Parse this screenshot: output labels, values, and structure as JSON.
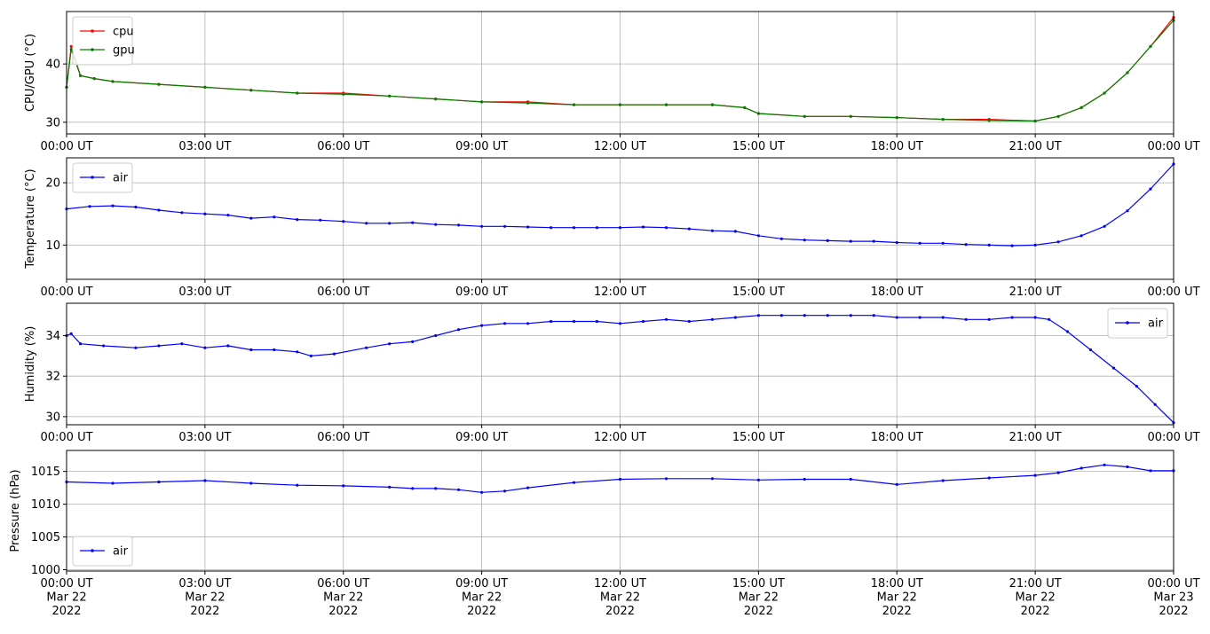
{
  "chart_data": [
    {
      "type": "line",
      "ylabel": "CPU/GPU (°C)",
      "ylim": [
        28,
        49
      ],
      "yticks": [
        30,
        40
      ],
      "xlim": [
        0,
        24
      ],
      "xticklabels": [
        "00:00 UT",
        "03:00 UT",
        "06:00 UT",
        "09:00 UT",
        "12:00 UT",
        "15:00 UT",
        "18:00 UT",
        "21:00 UT",
        "00:00 UT"
      ],
      "grid": true,
      "legend_position": "upper-left",
      "series": [
        {
          "name": "cpu",
          "color": "#ff0000",
          "x": [
            0,
            0.1,
            0.3,
            0.6,
            1,
            2,
            3,
            4,
            5,
            6,
            7,
            8,
            9,
            10,
            11,
            12,
            13,
            14,
            14.7,
            15,
            16,
            17,
            18,
            19,
            20,
            21,
            21.5,
            22,
            22.5,
            23,
            23.5,
            24
          ],
          "y": [
            36,
            43,
            38,
            37.5,
            37,
            36.5,
            36,
            35.5,
            35,
            35,
            34.5,
            34,
            33.5,
            33.5,
            33,
            33,
            33,
            33,
            32.5,
            31.5,
            31,
            31,
            30.8,
            30.5,
            30.5,
            30.2,
            31,
            32.5,
            35,
            38.5,
            43,
            48
          ]
        },
        {
          "name": "gpu",
          "color": "#008000",
          "x": [
            0,
            0.1,
            0.3,
            0.6,
            1,
            2,
            3,
            4,
            5,
            6,
            7,
            8,
            9,
            10,
            11,
            12,
            13,
            14,
            14.7,
            15,
            16,
            17,
            18,
            19,
            20,
            21,
            21.5,
            22,
            22.5,
            23,
            23.5,
            24
          ],
          "y": [
            36,
            42.5,
            38,
            37.5,
            37,
            36.5,
            36,
            35.5,
            35,
            34.8,
            34.5,
            34,
            33.5,
            33.3,
            33,
            33,
            33,
            33,
            32.5,
            31.5,
            31,
            31,
            30.8,
            30.5,
            30.3,
            30.2,
            31,
            32.5,
            35,
            38.5,
            43,
            47.5
          ]
        }
      ]
    },
    {
      "type": "line",
      "ylabel": "Temperature (°C)",
      "ylim": [
        4.5,
        24
      ],
      "yticks": [
        10,
        20
      ],
      "xlim": [
        0,
        24
      ],
      "xticklabels": [
        "00:00 UT",
        "03:00 UT",
        "06:00 UT",
        "09:00 UT",
        "12:00 UT",
        "15:00 UT",
        "18:00 UT",
        "21:00 UT",
        "00:00 UT"
      ],
      "grid": true,
      "legend_position": "upper-left",
      "series": [
        {
          "name": "air",
          "color": "#0000ff",
          "x": [
            0,
            0.5,
            1,
            1.5,
            2,
            2.5,
            3,
            3.5,
            4,
            4.5,
            5,
            5.5,
            6,
            6.5,
            7,
            7.5,
            8,
            8.5,
            9,
            9.5,
            10,
            10.5,
            11,
            11.5,
            12,
            12.5,
            13,
            13.5,
            14,
            14.5,
            15,
            15.5,
            16,
            16.5,
            17,
            17.5,
            18,
            18.5,
            19,
            19.5,
            20,
            20.5,
            21,
            21.5,
            22,
            22.5,
            23,
            23.5,
            24
          ],
          "y": [
            15.8,
            16.2,
            16.3,
            16.1,
            15.6,
            15.2,
            15,
            14.8,
            14.3,
            14.5,
            14.1,
            14,
            13.8,
            13.5,
            13.5,
            13.6,
            13.3,
            13.2,
            13,
            13,
            12.9,
            12.8,
            12.8,
            12.8,
            12.8,
            12.9,
            12.8,
            12.6,
            12.3,
            12.2,
            11.5,
            11,
            10.8,
            10.7,
            10.6,
            10.6,
            10.4,
            10.3,
            10.3,
            10.1,
            10,
            9.9,
            10,
            10.5,
            11.5,
            13,
            15.5,
            19,
            23
          ]
        }
      ]
    },
    {
      "type": "line",
      "ylabel": "Humidity (%)",
      "ylim": [
        29.6,
        35.6
      ],
      "yticks": [
        30,
        32,
        34
      ],
      "xlim": [
        0,
        24
      ],
      "xticklabels": [
        "00:00 UT",
        "03:00 UT",
        "06:00 UT",
        "09:00 UT",
        "12:00 UT",
        "15:00 UT",
        "18:00 UT",
        "21:00 UT",
        "00:00 UT"
      ],
      "grid": true,
      "legend_position": "upper-right",
      "series": [
        {
          "name": "air",
          "color": "#0000ff",
          "x": [
            0,
            0.1,
            0.3,
            0.8,
            1.5,
            2,
            2.5,
            3,
            3.5,
            4,
            4.5,
            5,
            5.3,
            5.8,
            6.5,
            7,
            7.5,
            8,
            8.5,
            9,
            9.5,
            10,
            10.5,
            11,
            11.5,
            12,
            12.5,
            13,
            13.5,
            14,
            14.5,
            15,
            15.5,
            16,
            16.5,
            17,
            17.5,
            18,
            18.5,
            19,
            19.5,
            20,
            20.5,
            21,
            21.3,
            21.7,
            22.2,
            22.7,
            23.2,
            23.6,
            24
          ],
          "y": [
            34,
            34.1,
            33.6,
            33.5,
            33.4,
            33.5,
            33.6,
            33.4,
            33.5,
            33.3,
            33.3,
            33.2,
            33,
            33.1,
            33.4,
            33.6,
            33.7,
            34,
            34.3,
            34.5,
            34.6,
            34.6,
            34.7,
            34.7,
            34.7,
            34.6,
            34.7,
            34.8,
            34.7,
            34.8,
            34.9,
            35,
            35,
            35,
            35,
            35,
            35,
            34.9,
            34.9,
            34.9,
            34.8,
            34.8,
            34.9,
            34.9,
            34.8,
            34.2,
            33.3,
            32.4,
            31.5,
            30.6,
            29.7
          ]
        }
      ]
    },
    {
      "type": "line",
      "ylabel": "Pressure (hPa)",
      "ylim": [
        999.8,
        1018.2
      ],
      "yticks": [
        1000,
        1005,
        1010,
        1015
      ],
      "xlim": [
        0,
        24
      ],
      "xticklabels": [
        "00:00 UT\nMar 22\n2022",
        "03:00 UT\nMar 22\n2022",
        "06:00 UT\nMar 22\n2022",
        "09:00 UT\nMar 22\n2022",
        "12:00 UT\nMar 22\n2022",
        "15:00 UT\nMar 22\n2022",
        "18:00 UT\nMar 22\n2022",
        "21:00 UT\nMar 22\n2022",
        "00:00 UT\nMar 23\n2022"
      ],
      "grid": true,
      "legend_position": "lower-left",
      "series": [
        {
          "name": "air",
          "color": "#0000ff",
          "x": [
            0,
            1,
            2,
            3,
            4,
            5,
            6,
            7,
            7.5,
            8,
            8.5,
            9,
            9.5,
            10,
            11,
            12,
            13,
            14,
            15,
            16,
            17,
            18,
            19,
            20,
            21,
            21.5,
            22,
            22.5,
            23,
            23.5,
            24
          ],
          "y": [
            1013.4,
            1013.2,
            1013.4,
            1013.6,
            1013.2,
            1012.9,
            1012.8,
            1012.6,
            1012.4,
            1012.4,
            1012.2,
            1011.8,
            1012,
            1012.5,
            1013.3,
            1013.8,
            1013.9,
            1013.9,
            1013.7,
            1013.8,
            1013.8,
            1013,
            1013.6,
            1014,
            1014.4,
            1014.8,
            1015.5,
            1016,
            1015.7,
            1015.1,
            1015.1
          ]
        }
      ]
    }
  ]
}
